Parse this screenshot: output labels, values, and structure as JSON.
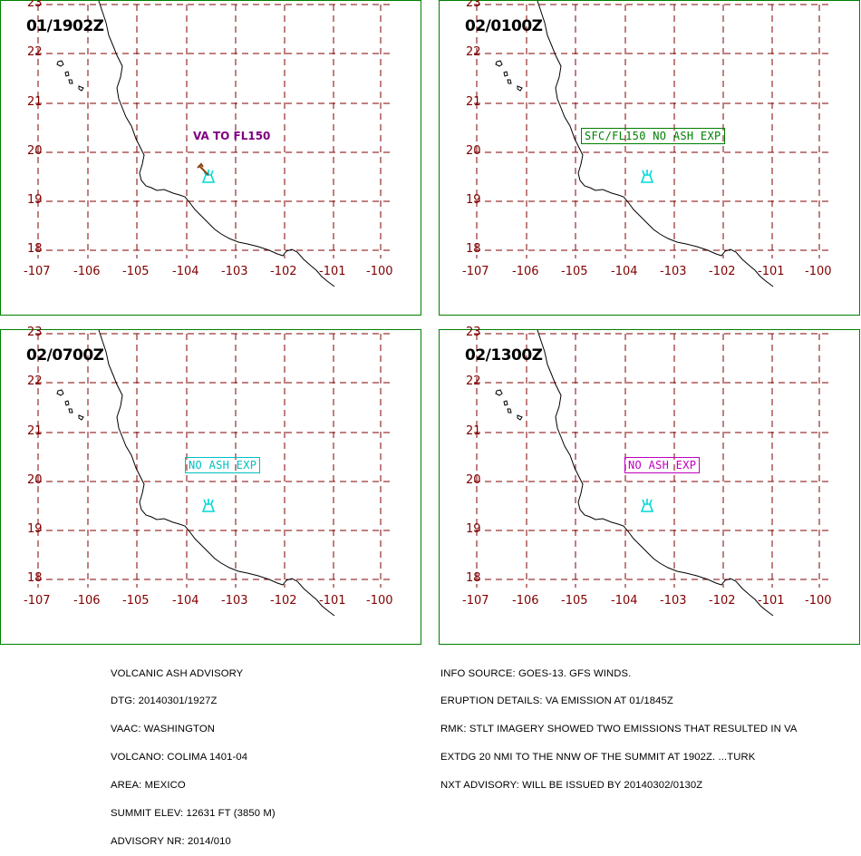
{
  "colors": {
    "frame": "#008000",
    "grid": "#800000",
    "coast": "#000000",
    "volcano": "#00d8d8",
    "fcst_fl150": "#008000",
    "fcst_07": "#00c0c0",
    "fcst_13": "#c000c0",
    "obs_text": "#800080",
    "wind_arrow": "#8b4513"
  },
  "axes": {
    "lat_labels": [
      "23",
      "22",
      "21",
      "20",
      "19",
      "18"
    ],
    "lon_labels": [
      "-107",
      "-106",
      "-105",
      "-104",
      "-103",
      "-102",
      "-101",
      "-100"
    ]
  },
  "panels": [
    {
      "time": "01/1902Z",
      "label": "VA TO FL150",
      "label_style": "observed"
    },
    {
      "time": "02/0100Z",
      "label": "SFC/FL150 NO ASH EXP",
      "label_style": "box-green"
    },
    {
      "time": "02/0700Z",
      "label": "NO ASH EXP",
      "label_style": "box-cyan"
    },
    {
      "time": "02/1300Z",
      "label": "NO ASH EXP",
      "label_style": "box-magenta"
    }
  ],
  "advisory_left": [
    "VOLCANIC ASH ADVISORY",
    "DTG: 20140301/1927Z",
    "VAAC: WASHINGTON",
    "VOLCANO: COLIMA 1401-04",
    "AREA: MEXICO",
    "SUMMIT ELEV: 12631 FT (3850 M)",
    "ADVISORY NR: 2014/010"
  ],
  "advisory_right": [
    "INFO SOURCE: GOES-13. GFS WINDS.",
    "ERUPTION DETAILS: VA EMISSION AT 01/1845Z",
    "RMK: STLT IMAGERY SHOWED TWO EMISSIONS THAT RESULTED IN VA",
    "EXTDG 20 NMI TO THE NNW OF THE SUMMIT AT 1902Z. ...TURK",
    "NXT ADVISORY: WILL BE ISSUED BY 20140302/0130Z"
  ]
}
